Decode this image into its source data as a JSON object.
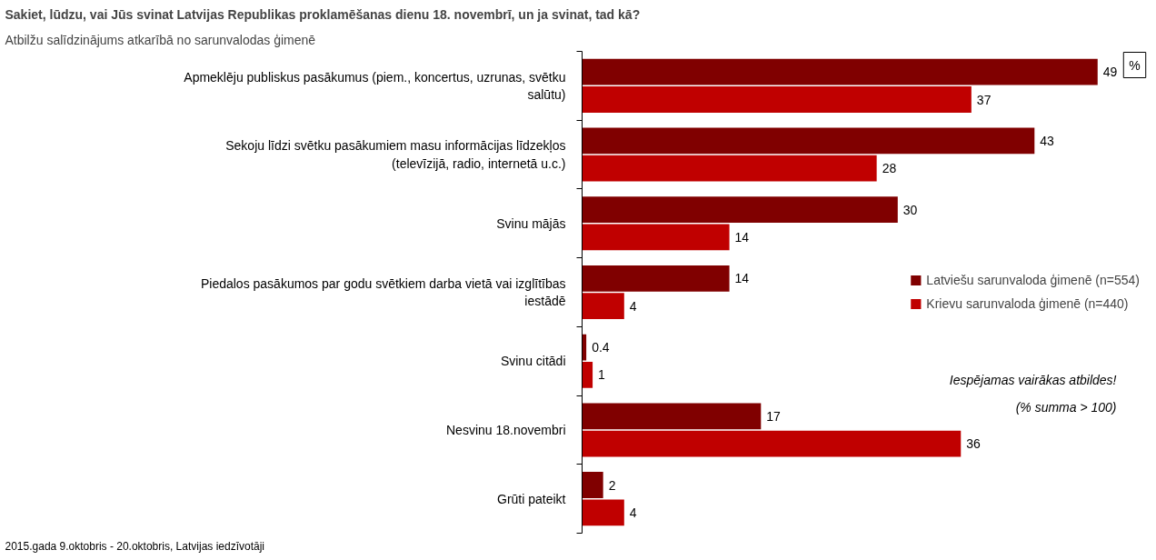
{
  "chart_data": {
    "type": "bar",
    "orientation": "horizontal",
    "title": "Sakiet, lūdzu, vai Jūs svinat Latvijas Republikas proklamēšanas dienu 18. novembrī, un ja svinat, tad kā?",
    "subtitle": "Atbilžu salīdzinājums atkarībā no sarunvalodas ģimenē",
    "categories": [
      "Apmeklēju publiskus pasākumus (piem., koncertus, uzrunas, svētku salūtu)",
      "Sekoju līdzi svētku pasākumiem masu informācijas līdzekļos (televīzijā, radio, internetā u.c.)",
      "Svinu mājās",
      "Piedalos pasākumos par godu svētkiem darba vietā vai izglītības iestādē",
      "Svinu citādi",
      "Nesvinu 18.novembri",
      "Grūti pateikt"
    ],
    "series": [
      {
        "name": "Latviešu sarunvaloda ģimenē (n=554)",
        "color": "#800000",
        "values": [
          49,
          43,
          30,
          14,
          0.4,
          17,
          2
        ]
      },
      {
        "name": "Krievu sarunvaloda ģimenē (n=440)",
        "color": "#c00000",
        "values": [
          37,
          28,
          14,
          4,
          1,
          36,
          4
        ]
      }
    ],
    "data_labels": true,
    "legend": "right",
    "grid": false,
    "annotations": [
      "%",
      "Iespējamas vairākas atbildes!",
      "(% summa > 100)",
      "2015.gada 9.oktobris - 20.oktobris, Latvijas iedzīvotāji"
    ]
  }
}
